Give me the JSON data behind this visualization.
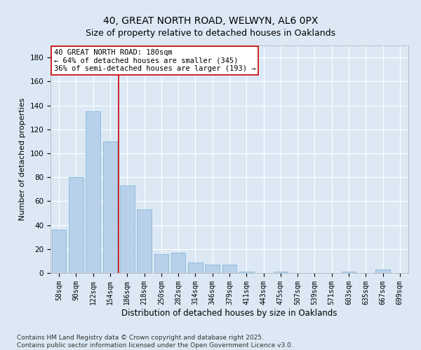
{
  "title_line1": "40, GREAT NORTH ROAD, WELWYN, AL6 0PX",
  "title_line2": "Size of property relative to detached houses in Oaklands",
  "xlabel": "Distribution of detached houses by size in Oaklands",
  "ylabel": "Number of detached properties",
  "bar_values": [
    36,
    80,
    135,
    110,
    73,
    53,
    16,
    17,
    9,
    7,
    7,
    1,
    0,
    1,
    0,
    0,
    0,
    1,
    0,
    3,
    0
  ],
  "categories": [
    "58sqm",
    "90sqm",
    "122sqm",
    "154sqm",
    "186sqm",
    "218sqm",
    "250sqm",
    "282sqm",
    "314sqm",
    "346sqm",
    "379sqm",
    "411sqm",
    "443sqm",
    "475sqm",
    "507sqm",
    "539sqm",
    "571sqm",
    "603sqm",
    "635sqm",
    "667sqm",
    "699sqm"
  ],
  "bar_color": "#b8d0ea",
  "bar_edge_color": "#7aafd4",
  "background_color": "#dce9f5",
  "plot_bg_color": "#dce9f5",
  "grid_color": "#ffffff",
  "vline_x": 3.5,
  "vline_color": "#cc0000",
  "annotation_text": "40 GREAT NORTH ROAD: 180sqm\n← 64% of detached houses are smaller (345)\n36% of semi-detached houses are larger (193) →",
  "annotation_box_color": "#ffffff",
  "annotation_box_edge_color": "#cc0000",
  "ylim": [
    0,
    190
  ],
  "yticks": [
    0,
    20,
    40,
    60,
    80,
    100,
    120,
    140,
    160,
    180
  ],
  "footnote": "Contains HM Land Registry data © Crown copyright and database right 2025.\nContains public sector information licensed under the Open Government Licence v3.0.",
  "title_fontsize": 10,
  "subtitle_fontsize": 9,
  "axis_label_fontsize": 8.5,
  "tick_fontsize": 7,
  "annotation_fontsize": 7.5,
  "footnote_fontsize": 6.5,
  "ylabel_fontsize": 8
}
